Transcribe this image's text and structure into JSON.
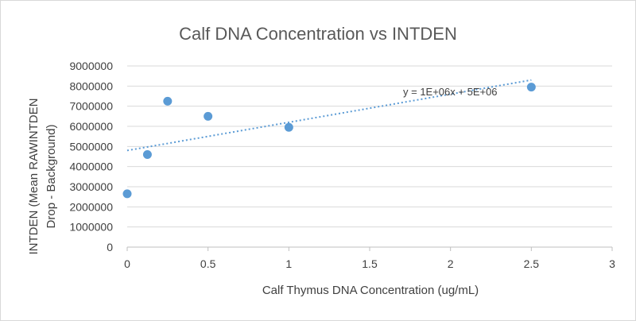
{
  "chart_data": {
    "type": "scatter",
    "title": "Calf DNA Concentration vs INTDEN",
    "xlabel": "Calf Thymus DNA Concentration (ug/mL)",
    "ylabel_line1": "INTDEN (Mean RAWINTDEN",
    "ylabel_line2": "Drop - Background)",
    "xlim": [
      0,
      3
    ],
    "ylim": [
      0,
      9000000
    ],
    "x_ticks": [
      "0",
      "0.5",
      "1",
      "1.5",
      "2",
      "2.5",
      "3"
    ],
    "y_ticks": [
      "0",
      "1000000",
      "2000000",
      "3000000",
      "4000000",
      "5000000",
      "6000000",
      "7000000",
      "8000000",
      "9000000"
    ],
    "grid": "horizontal",
    "series": [
      {
        "name": "INTDEN",
        "color": "#5b9bd5",
        "points": [
          {
            "x": 0,
            "y": 2650000
          },
          {
            "x": 0.125,
            "y": 4600000
          },
          {
            "x": 0.25,
            "y": 7250000
          },
          {
            "x": 0.5,
            "y": 6500000
          },
          {
            "x": 1,
            "y": 5950000
          },
          {
            "x": 2.5,
            "y": 7950000
          }
        ]
      }
    ],
    "trendline": {
      "type": "linear",
      "color": "#5b9bd5",
      "x_start": 0,
      "y_start": 4800000,
      "x_end": 2.5,
      "y_end": 8300000,
      "equation": "y = 1E+06x + 5E+06"
    }
  }
}
